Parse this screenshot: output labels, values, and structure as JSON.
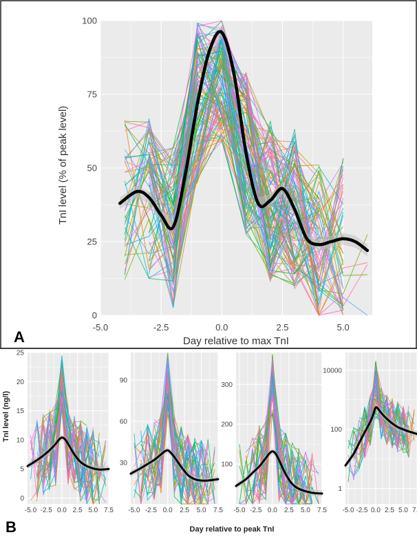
{
  "panel_labels": {
    "a": "A",
    "b": "B"
  },
  "colors": {
    "background": "#ffffff",
    "panel_bg": "#ebebeb",
    "grid": "#ffffff",
    "mean_line": "#000000",
    "frame": "#222222",
    "ribbon": "#bdbdbd",
    "patient_palette": [
      "#f8766d",
      "#e58700",
      "#c99800",
      "#a3a500",
      "#6bb100",
      "#00ba38",
      "#00bf7d",
      "#00c0af",
      "#00bcd8",
      "#00b0f6",
      "#619cff",
      "#b983ff",
      "#e76bf3",
      "#fd61d1",
      "#ff67a4"
    ]
  },
  "chart_data": [
    {
      "type": "line",
      "panel": "A",
      "xlabel": "Day relative to max TnI",
      "ylabel": "TnI level (% of peak level)",
      "xlim": [
        -5,
        6.2
      ],
      "ylim": [
        0,
        100
      ],
      "x_ticks": [
        -5.0,
        -2.5,
        0.0,
        2.5,
        5.0
      ],
      "x_tick_labels": [
        "-5.0",
        "-2.5",
        "0.0",
        "2.5",
        "5.0"
      ],
      "y_ticks": [
        0,
        25,
        50,
        75,
        100
      ],
      "y_tick_labels": [
        "0",
        "25",
        "50",
        "75",
        "100"
      ],
      "grid": true,
      "individual_series": "many patient trajectories, multicolored",
      "mean_curve": {
        "x": [
          -4.2,
          -3.5,
          -3.0,
          -2.5,
          -2.0,
          -1.5,
          -1.0,
          -0.5,
          0.0,
          0.5,
          1.0,
          1.5,
          2.0,
          2.5,
          3.0,
          3.5,
          4.0,
          4.5,
          5.0,
          5.5,
          6.0
        ],
        "y": [
          38,
          42,
          40,
          34,
          30,
          48,
          72,
          90,
          96,
          82,
          55,
          38,
          39,
          43,
          36,
          26,
          24,
          25,
          26,
          25,
          22
        ]
      }
    },
    {
      "type": "line",
      "panel": "B1",
      "xlim": [
        -5.5,
        7.5
      ],
      "ylim": [
        -1,
        25
      ],
      "x_ticks": [
        -5.0,
        -2.5,
        0.0,
        2.5,
        5.0,
        7.5
      ],
      "x_tick_labels": [
        "-5.0",
        "-2.5",
        "0.0",
        "2.5",
        "5.0",
        "7.5"
      ],
      "y_ticks": [
        0,
        5,
        10,
        15,
        20,
        25
      ],
      "y_tick_labels": [
        "0",
        "5",
        "10",
        "15",
        "20",
        "25"
      ],
      "grid": true,
      "mean_curve": {
        "x": [
          -5.5,
          -4,
          -3,
          -2,
          -1,
          -0.5,
          0,
          0.5,
          1,
          2,
          3,
          4,
          5,
          6,
          7.5
        ],
        "y": [
          5.5,
          6.5,
          7.3,
          8.2,
          9.3,
          10,
          10.4,
          10.1,
          9.3,
          7.5,
          6.2,
          5.5,
          5.1,
          4.9,
          5.0
        ]
      }
    },
    {
      "type": "line",
      "panel": "B2",
      "xlim": [
        -5.5,
        7.5
      ],
      "ylim": [
        0,
        110
      ],
      "x_ticks": [
        -5.0,
        -2.5,
        0.0,
        2.5,
        5.0,
        7.5
      ],
      "x_tick_labels": [
        "-5.0",
        "-2.5",
        "0.0",
        "2.5",
        "5.0",
        "7.5"
      ],
      "y_ticks": [
        30,
        60,
        90
      ],
      "y_tick_labels": [
        "30",
        "60",
        "90"
      ],
      "grid": true,
      "mean_curve": {
        "x": [
          -5.5,
          -4,
          -3,
          -2,
          -1,
          -0.5,
          0,
          0.5,
          1,
          2,
          3,
          4,
          5,
          6,
          7.5
        ],
        "y": [
          22,
          26,
          29,
          32,
          36,
          38,
          39,
          37,
          34,
          27,
          21,
          18,
          17,
          17,
          18
        ]
      }
    },
    {
      "type": "line",
      "panel": "B3",
      "xlim": [
        -5.5,
        7.5
      ],
      "ylim": [
        0,
        380
      ],
      "x_ticks": [
        -5.0,
        -2.5,
        0.0,
        2.5,
        5.0,
        7.5
      ],
      "x_tick_labels": [
        "-5.0",
        "-2.5",
        "0.0",
        "2.5",
        "5.0",
        "7.5"
      ],
      "y_ticks": [
        100,
        200,
        300
      ],
      "y_tick_labels": [
        "100",
        "200",
        "300"
      ],
      "grid": true,
      "mean_curve": {
        "x": [
          -5.5,
          -4,
          -3,
          -2,
          -1,
          -0.5,
          0,
          0.5,
          1,
          2,
          3,
          4,
          5,
          6,
          7.5
        ],
        "y": [
          45,
          62,
          78,
          94,
          115,
          126,
          132,
          126,
          110,
          75,
          50,
          38,
          32,
          28,
          26
        ]
      }
    },
    {
      "type": "line",
      "panel": "B4",
      "y_scale": "log",
      "xlim": [
        -5.5,
        7.5
      ],
      "ylim": [
        0.3,
        40000
      ],
      "x_ticks": [
        -5.0,
        -2.5,
        0.0,
        2.5,
        5.0,
        7.5
      ],
      "x_tick_labels": [
        "-5.0",
        "-2.5",
        "0.0",
        "2.5",
        "5.0",
        "7.5"
      ],
      "y_ticks": [
        1,
        100,
        10000
      ],
      "y_tick_labels": [
        "1",
        "100",
        "10000"
      ],
      "grid": true,
      "mean_curve": {
        "x": [
          -5.5,
          -4,
          -3,
          -2,
          -1,
          -0.5,
          0,
          0.5,
          1,
          2,
          3,
          4,
          5,
          6,
          7.5
        ],
        "y": [
          6,
          15,
          35,
          80,
          180,
          300,
          550,
          480,
          360,
          230,
          160,
          120,
          100,
          85,
          70
        ]
      }
    }
  ],
  "panel_b_labels": {
    "ylabel": "TnI level (ng/l)",
    "xlabel": "Day relative to peak TnI"
  }
}
